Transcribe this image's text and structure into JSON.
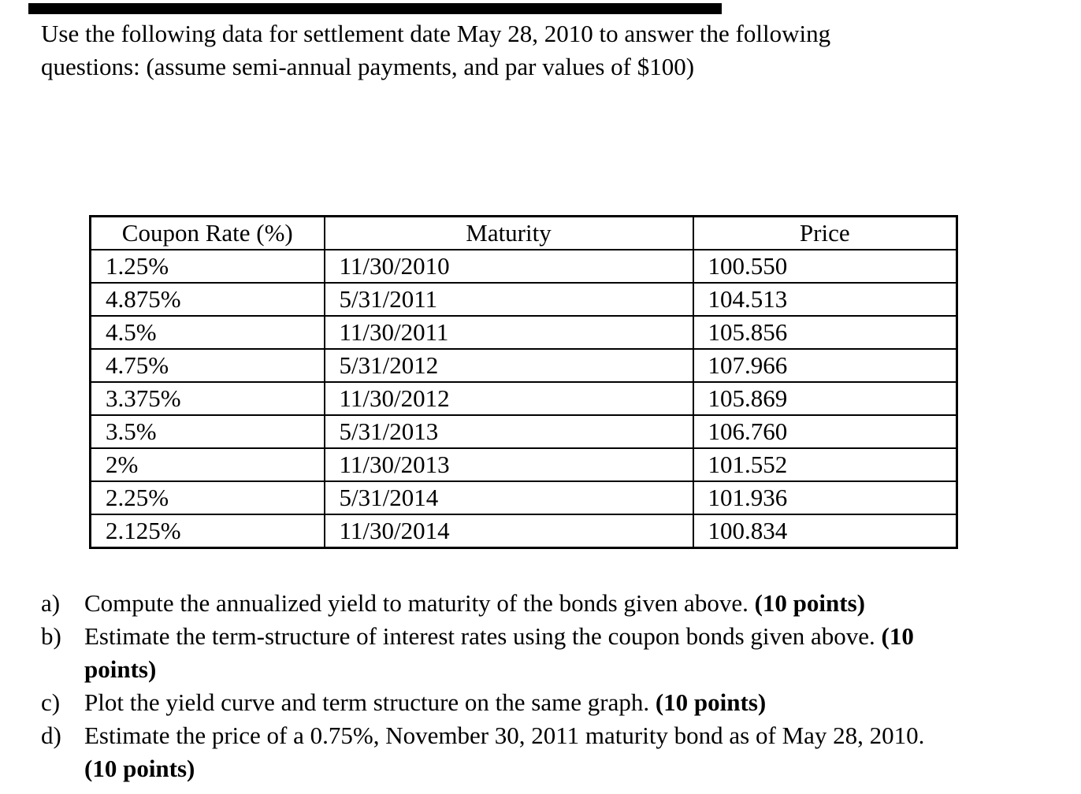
{
  "colors": {
    "text": "#000000",
    "background": "#ffffff",
    "redaction_bar": "#000000"
  },
  "intro": {
    "lines": [
      "Use the following data for settlement date May 28, 2010 to answer the following",
      "questions: (assume semi-annual payments, and par values of $100)"
    ]
  },
  "table": {
    "headers": [
      "Coupon Rate (%)",
      "Maturity",
      "Price"
    ],
    "rows": [
      [
        "1.25%",
        "11/30/2010",
        "100.550"
      ],
      [
        "4.875%",
        "5/31/2011",
        "104.513"
      ],
      [
        "4.5%",
        "11/30/2011",
        "105.856"
      ],
      [
        "4.75%",
        "5/31/2012",
        "107.966"
      ],
      [
        "3.375%",
        "11/30/2012",
        "105.869"
      ],
      [
        "3.5%",
        "5/31/2013",
        "106.760"
      ],
      [
        "2%",
        "11/30/2013",
        "101.552"
      ],
      [
        "2.25%",
        "5/31/2014",
        "101.936"
      ],
      [
        "2.125%",
        "11/30/2014",
        "100.834"
      ]
    ]
  },
  "questions": [
    {
      "label": "a)",
      "segments": [
        {
          "text": "Compute the annualized yield to maturity of the bonds given above. ",
          "bold": false
        },
        {
          "text": "(10 points)",
          "bold": true
        }
      ]
    },
    {
      "label": "b)",
      "segments": [
        {
          "text": "Estimate the term-structure of interest rates using the coupon bonds given above. ",
          "bold": false
        },
        {
          "text": "(10",
          "bold": true,
          "break_after": true
        },
        {
          "text": "points)",
          "bold": true
        }
      ]
    },
    {
      "label": "c)",
      "segments": [
        {
          "text": "Plot the yield curve and term structure on the same graph. ",
          "bold": false
        },
        {
          "text": "(10 points)",
          "bold": true
        }
      ]
    },
    {
      "label": "d)",
      "segments": [
        {
          "text": "Estimate the price of a 0.75%, November 30, 2011 maturity bond as of May 28, 2010.",
          "bold": false,
          "break_after": true
        },
        {
          "text": "(10 points)",
          "bold": true
        }
      ]
    }
  ]
}
